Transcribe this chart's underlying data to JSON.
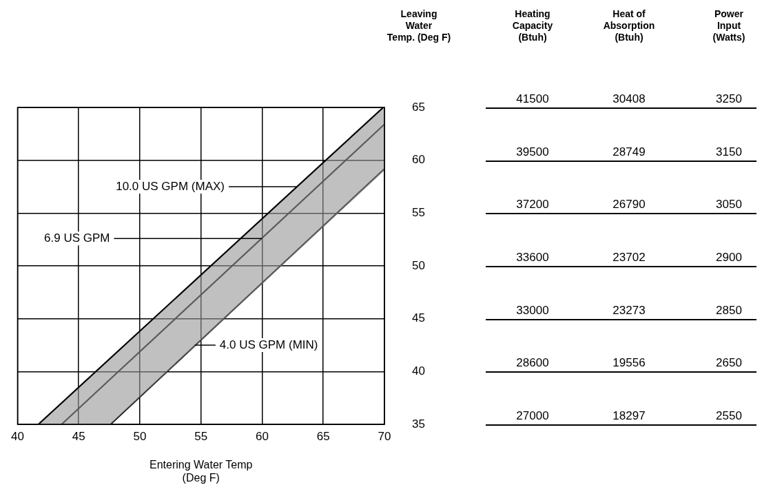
{
  "chart_data": [
    {
      "type": "line",
      "xlabel": "Entering Water Temp\n(Deg F)",
      "ylabel": "Leaving\nWater\nTemp. (Deg F)",
      "xlim": [
        40,
        70
      ],
      "xticks": [
        40,
        45,
        50,
        55,
        60,
        65,
        70
      ],
      "ylim": [
        35,
        65
      ],
      "yticks": [
        35,
        40,
        45,
        50,
        55,
        60,
        65
      ],
      "grid": true,
      "legend": false,
      "marker": "none",
      "line_style": "solid",
      "annotations": [
        {
          "text": "10.0 US GPM (MAX)",
          "x": 62.9,
          "y": 57.5
        },
        {
          "text": "6.9 US GPM",
          "x": 60.0,
          "y": 52.6
        },
        {
          "text": "4.0 US GPM (MIN)",
          "x": 54.5,
          "y": 42.5
        }
      ],
      "series": [
        {
          "color": "#000000",
          "x": [
            41.7,
            69.9
          ],
          "values": [
            35,
            65
          ]
        },
        {
          "color": "#000000",
          "x": [
            41.7,
            43.6,
            47.6,
            69.9,
            70
          ],
          "values": [
            null,
            35,
            39.3,
            63.3,
            63.4
          ],
          "lower": [
            35,
            35,
            35,
            58.9,
            59.2
          ],
          "upper": [
            35,
            37.0,
            41.3,
            65,
            65
          ]
        },
        {
          "color": "#000000",
          "x": [
            47.6,
            70
          ],
          "values": [
            35,
            59.2
          ]
        }
      ]
    },
    {
      "type": "other",
      "categories": [
        "Heating\nCapacity\n(Btuh)",
        "Heat of\nAbsorption\n(Btuh)",
        "Power\nInput\n(Watts)"
      ],
      "cell_labels": [
        [
          "41500",
          "30408",
          "3250"
        ],
        [
          "39500",
          "28749",
          "3150"
        ],
        [
          "37200",
          "26790",
          "3050"
        ],
        [
          "33600",
          "23702",
          "2900"
        ],
        [
          "33000",
          "23273",
          "2850"
        ],
        [
          "28600",
          "19556",
          "2650"
        ],
        [
          "27000",
          "18297",
          "2550"
        ]
      ]
    }
  ]
}
